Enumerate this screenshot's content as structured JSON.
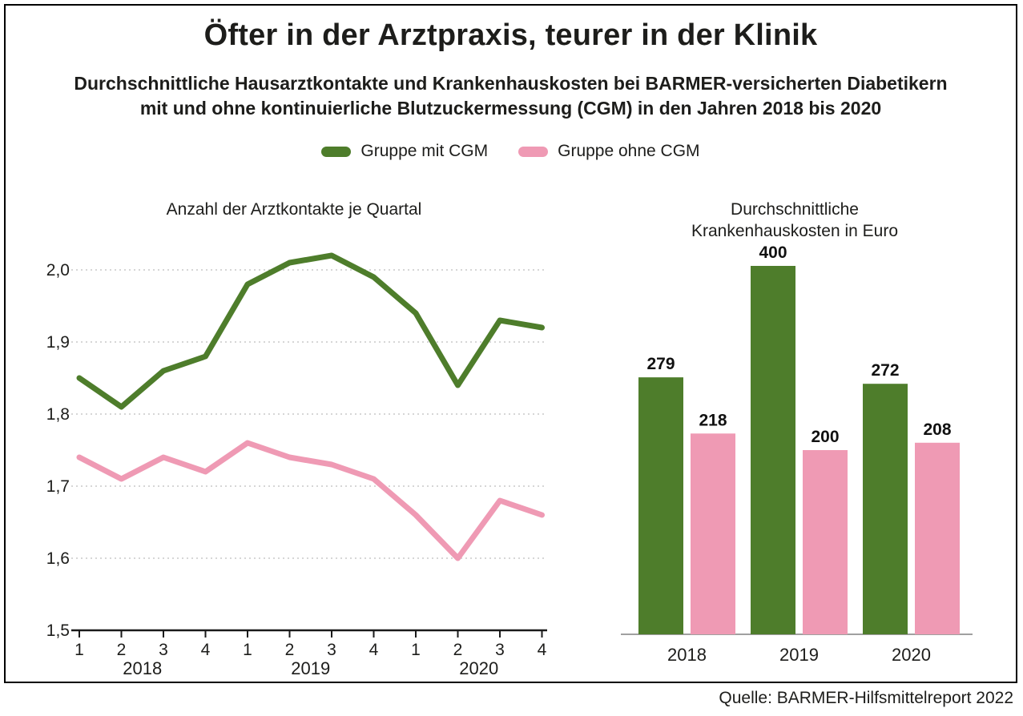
{
  "page": {
    "title": "Öfter in der Arztpraxis, teurer in der Klinik",
    "subtitle_line1": "Durchschnittliche Hausarztkontakte und Krankenhauskosten bei BARMER-versicherten Diabetikern",
    "subtitle_line2": "mit und ohne kontinuierliche Blutzuckermessung (CGM) in den Jahren 2018 bis 2020",
    "source": "Quelle: BARMER-Hilfsmittelreport 2022"
  },
  "legend": {
    "items": [
      {
        "label": "Gruppe mit CGM",
        "color": "#4e7d2b"
      },
      {
        "label": "Gruppe ohne CGM",
        "color": "#ef9ab4"
      }
    ]
  },
  "colors": {
    "green": "#4e7d2b",
    "pink": "#ef9ab4",
    "grid": "#c9c9c9",
    "axis": "#1a1a1a",
    "baseline": "#a0a0a0"
  },
  "chart_data": [
    {
      "type": "line",
      "title": "Anzahl der Arztkontakte je Quartal",
      "x_tick_labels": [
        "1",
        "2",
        "3",
        "4",
        "1",
        "2",
        "3",
        "4",
        "1",
        "2",
        "3",
        "4"
      ],
      "year_labels": [
        "2018",
        "2019",
        "2020"
      ],
      "ylim": [
        1.5,
        2.05
      ],
      "yticks": [
        1.5,
        1.6,
        1.7,
        1.8,
        1.9,
        2.0
      ],
      "ytick_labels": [
        "1,5",
        "1,6",
        "1,7",
        "1,8",
        "1,9",
        "2,0"
      ],
      "grid": "dotted-horizontal",
      "legend_position": "top-center",
      "series": [
        {
          "name": "Gruppe mit CGM",
          "color": "#4e7d2b",
          "values": [
            1.85,
            1.81,
            1.86,
            1.88,
            1.98,
            2.01,
            2.02,
            1.99,
            1.94,
            1.84,
            1.93,
            1.92
          ]
        },
        {
          "name": "Gruppe ohne CGM",
          "color": "#ef9ab4",
          "values": [
            1.74,
            1.71,
            1.74,
            1.72,
            1.76,
            1.74,
            1.73,
            1.71,
            1.66,
            1.6,
            1.68,
            1.66
          ]
        }
      ]
    },
    {
      "type": "bar",
      "title": "Durchschnittliche Krankenhauskosten in Euro",
      "categories": [
        "2018",
        "2019",
        "2020"
      ],
      "ylim": [
        0,
        420
      ],
      "grid": "off",
      "series": [
        {
          "name": "Gruppe mit CGM",
          "color": "#4e7d2b",
          "values": [
            279,
            400,
            272
          ]
        },
        {
          "name": "Gruppe ohne CGM",
          "color": "#ef9ab4",
          "values": [
            218,
            200,
            208
          ]
        }
      ]
    }
  ]
}
